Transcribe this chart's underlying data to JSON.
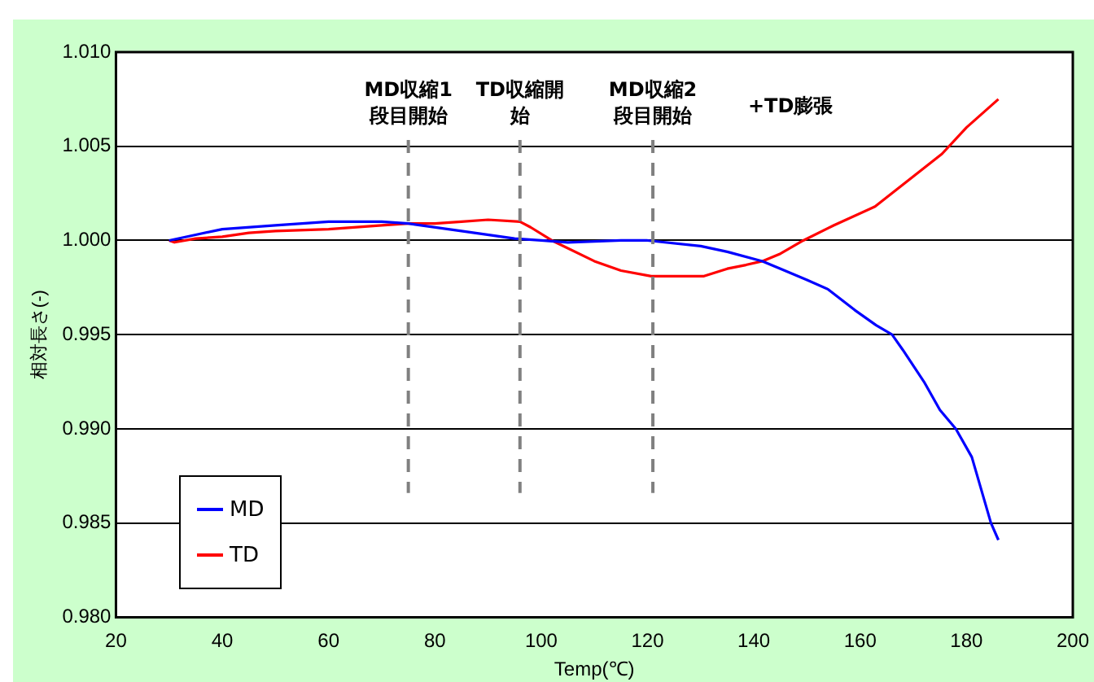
{
  "chart_data": {
    "type": "line",
    "xlabel": "Temp(℃)",
    "ylabel": "相対長さ(-)",
    "xlim": [
      20,
      200
    ],
    "xticks": [
      20,
      40,
      60,
      80,
      100,
      120,
      140,
      160,
      180,
      200
    ],
    "ylim": [
      0.98,
      1.01
    ],
    "yticks": [
      {
        "value": 0.98,
        "label": "0.980"
      },
      {
        "value": 0.985,
        "label": "0.985"
      },
      {
        "value": 0.99,
        "label": "0.990"
      },
      {
        "value": 0.995,
        "label": "0.995"
      },
      {
        "value": 1.0,
        "label": "1.000"
      },
      {
        "value": 1.005,
        "label": "1.005"
      },
      {
        "value": 1.01,
        "label": "1.010"
      }
    ],
    "grid": "y",
    "legend": "bottom left",
    "marker": "none",
    "line_style": "solid",
    "series": [
      {
        "name": "MD",
        "color": "#0000ff",
        "x": [
          30,
          35,
          40,
          50,
          60,
          70,
          75,
          85,
          95,
          100,
          105,
          115,
          120,
          130,
          135,
          141.6,
          145,
          150,
          154,
          159,
          163,
          166,
          168,
          172,
          175,
          178,
          181,
          184.6,
          186
        ],
        "values": [
          1.0,
          1.0003,
          1.0006,
          1.0008,
          1.001,
          1.001,
          1.0009,
          1.0005,
          1.0001,
          1.0,
          0.9999,
          1.0,
          1.0,
          0.9997,
          0.9994,
          0.9989,
          0.9985,
          0.9979,
          0.9974,
          0.9963,
          0.9955,
          0.995,
          0.9942,
          0.9925,
          0.991,
          0.99,
          0.9885,
          0.985,
          0.9841
        ]
      },
      {
        "name": "TD",
        "color": "#ff0000",
        "x": [
          30,
          31,
          35,
          40,
          45,
          50,
          60,
          70,
          75,
          80,
          85,
          90,
          96,
          98,
          102,
          110,
          115,
          120.7,
          125,
          130.5,
          135,
          138.5,
          141.6,
          145,
          149.3,
          155,
          162.8,
          170,
          175.4,
          180,
          186
        ],
        "values": [
          1.0,
          0.9999,
          1.0001,
          1.0002,
          1.0004,
          1.0005,
          1.0006,
          1.0008,
          1.0009,
          1.0009,
          1.001,
          1.0011,
          1.001,
          1.0007,
          1.0,
          0.9989,
          0.9984,
          0.9981,
          0.9981,
          0.9981,
          0.9985,
          0.9987,
          0.9989,
          0.9993,
          1.0,
          1.0008,
          1.0018,
          1.0034,
          1.0046,
          1.006,
          1.0075
        ]
      }
    ],
    "ref_lines": [
      {
        "axis": "x",
        "value": 75,
        "label": "MD収縮1段目開始",
        "color": "#808080",
        "line_style": "dashed"
      },
      {
        "axis": "x",
        "value": 96,
        "label": "TD収縮開始",
        "color": "#808080",
        "line_style": "dashed"
      },
      {
        "axis": "x",
        "value": 121,
        "label": "MD収縮2段目開始",
        "color": "#808080",
        "line_style": "dashed"
      }
    ],
    "annotations": [
      "+TD膨張"
    ]
  }
}
